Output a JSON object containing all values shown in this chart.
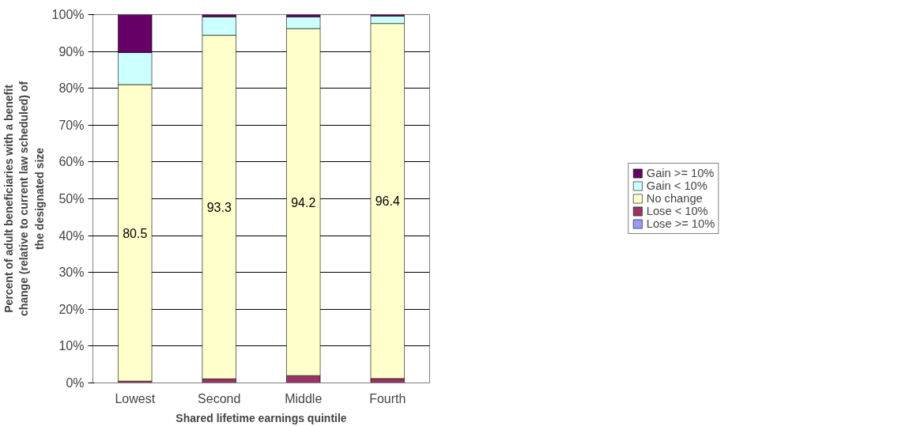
{
  "chart_data": {
    "type": "bar",
    "stacked": true,
    "xlabel": "Shared lifetime earnings quintile",
    "ylabel": "Percent of adult beneficiaries with a benefit change (relative to current law scheduled) of the designated size",
    "categories": [
      "Lowest",
      "Second",
      "Middle",
      "Fourth"
    ],
    "series": [
      {
        "name": "Lose >= 10%",
        "color": "#9999ff",
        "values": [
          0,
          0,
          0,
          0
        ]
      },
      {
        "name": "Lose < 10%",
        "color": "#993366",
        "values": [
          0.5,
          1.1,
          2.0,
          1.2
        ]
      },
      {
        "name": "No change",
        "color": "#ffffcc",
        "values": [
          80.5,
          93.3,
          94.2,
          96.4
        ],
        "value_labels": [
          "80.5",
          "93.3",
          "94.2",
          "96.4"
        ]
      },
      {
        "name": "Gain < 10%",
        "color": "#ccffff",
        "values": [
          8.7,
          5.0,
          3.2,
          2.0
        ]
      },
      {
        "name": "Gain >= 10%",
        "color": "#660066",
        "values": [
          10.3,
          0.6,
          0.6,
          0.4
        ]
      }
    ],
    "ylim": [
      0,
      100
    ],
    "yticks": [
      {
        "value": 0,
        "label": "0%"
      },
      {
        "value": 10,
        "label": "10%"
      },
      {
        "value": 20,
        "label": "20%"
      },
      {
        "value": 30,
        "label": "30%"
      },
      {
        "value": 40,
        "label": "40%"
      },
      {
        "value": 50,
        "label": "50%"
      },
      {
        "value": 60,
        "label": "60%"
      },
      {
        "value": 70,
        "label": "70%"
      },
      {
        "value": 80,
        "label": "80%"
      },
      {
        "value": 90,
        "label": "90%"
      },
      {
        "value": 100,
        "label": "100%"
      }
    ],
    "grid": "y",
    "legend": "right"
  }
}
